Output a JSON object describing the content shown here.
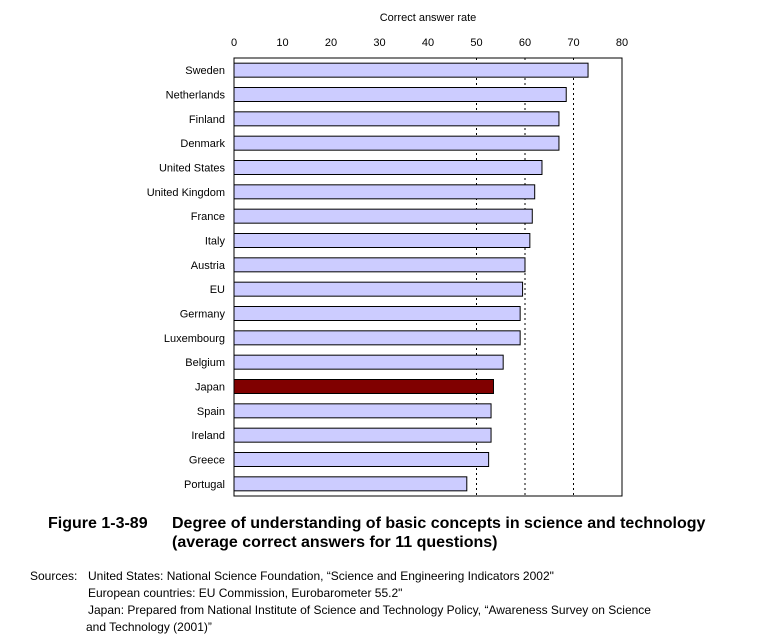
{
  "chart_data": {
    "type": "bar",
    "orientation": "horizontal",
    "axis_title": "Correct answer rate",
    "xlim": [
      0,
      80
    ],
    "ticks": [
      0,
      10,
      20,
      30,
      40,
      50,
      60,
      70,
      80
    ],
    "grid": "vertical dotted at 50, 60, 70",
    "categories": [
      "Sweden",
      "Netherlands",
      "Finland",
      "Denmark",
      "United States",
      "United Kingdom",
      "France",
      "Italy",
      "Austria",
      "EU",
      "Germany",
      "Luxembourg",
      "Belgium",
      "Japan",
      "Spain",
      "Ireland",
      "Greece",
      "Portugal"
    ],
    "values": [
      73,
      68.5,
      67,
      67,
      63.5,
      62,
      61.5,
      61,
      60,
      59.5,
      59,
      59,
      55.5,
      53.5,
      53,
      53,
      52.5,
      48
    ],
    "bar_color": "#ccccff",
    "highlight_color": "#800000",
    "highlight_category": "Japan"
  },
  "caption": {
    "figure_number": "Figure 1-3-89",
    "line1": "Degree of understanding of basic concepts in science and technology",
    "line2": "(average correct answers for 11 questions)"
  },
  "sources": {
    "label": "Sources:",
    "us": "United States: National Science Foundation, “Science and Engineering Indicators 2002\"",
    "eu": "European countries: EU Commission, Eurobarometer 55.2\"",
    "japan_1": "Japan: Prepared from National Institute of Science and Technology Policy, “Awareness Survey on Science",
    "japan_2": "and Technology (2001)”"
  }
}
